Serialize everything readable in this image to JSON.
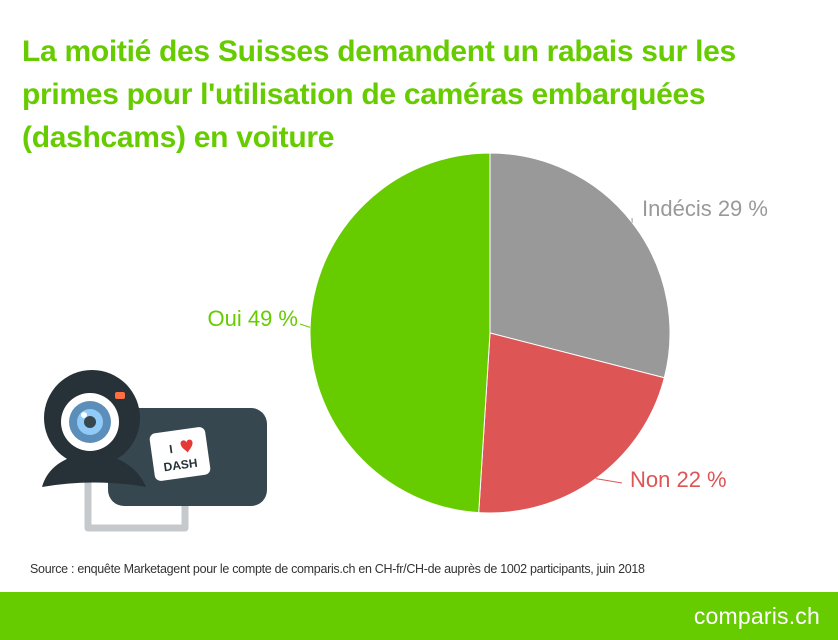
{
  "title": "La moitié des Suisses demandent un rabais sur les primes pour l'utilisation de caméras embarquées (dashcams) en voiture",
  "source": "Source : enquête Marketagent pour le compte de comparis.ch en CH-fr/CH-de auprès de 1002 participants, juin 2018",
  "brand": "comparis.ch",
  "illustration": {
    "sticker_line1": "I",
    "sticker_line2": "DASH",
    "icon": "webcam-dashcam-icon"
  },
  "colors": {
    "accent": "#66cc00",
    "gray": "#999999",
    "red": "#dd5555"
  },
  "chart_data": {
    "type": "pie",
    "slices": [
      {
        "label": "Indécis",
        "value": 29,
        "display": "Indécis 29 %",
        "color": "#999999"
      },
      {
        "label": "Non",
        "value": 22,
        "display": "Non 22 %",
        "color": "#dd5555"
      },
      {
        "label": "Oui",
        "value": 49,
        "display": "Oui 49 %",
        "color": "#66cc00"
      }
    ],
    "start_angle": "12 o'clock",
    "direction": "clockwise",
    "legend": "none"
  }
}
